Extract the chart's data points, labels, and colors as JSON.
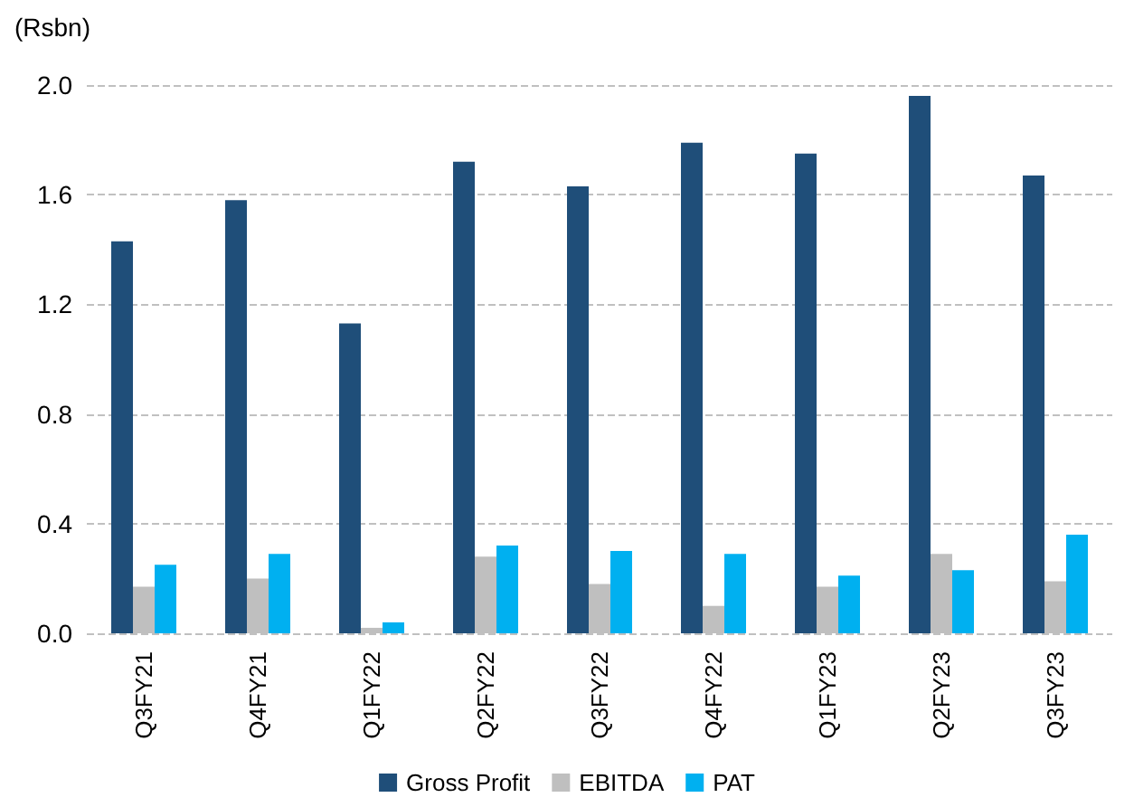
{
  "chart_data": {
    "type": "bar",
    "ylabel": "(Rsbn)",
    "categories": [
      "Q3FY21",
      "Q4FY21",
      "Q1FY22",
      "Q2FY22",
      "Q3FY22",
      "Q4FY22",
      "Q1FY23",
      "Q2FY23",
      "Q3FY23"
    ],
    "series": [
      {
        "name": "Gross Profit",
        "color": "#1f4e79",
        "values": [
          1.43,
          1.58,
          1.13,
          1.72,
          1.63,
          1.79,
          1.75,
          1.96,
          1.67
        ]
      },
      {
        "name": "EBITDA",
        "color": "#bfbfbf",
        "values": [
          0.17,
          0.2,
          0.02,
          0.28,
          0.18,
          0.1,
          0.17,
          0.29,
          0.19
        ]
      },
      {
        "name": "PAT",
        "color": "#00b0f0",
        "values": [
          0.25,
          0.29,
          0.04,
          0.32,
          0.3,
          0.29,
          0.21,
          0.23,
          0.36
        ]
      }
    ],
    "ylim": [
      0,
      2
    ],
    "yticks": [
      {
        "value": 0,
        "label": "0.0"
      },
      0.4,
      0.8,
      1.2,
      1.6,
      {
        "value": 2,
        "label": "2.0"
      }
    ],
    "grid": "y",
    "legend": "bottom"
  }
}
